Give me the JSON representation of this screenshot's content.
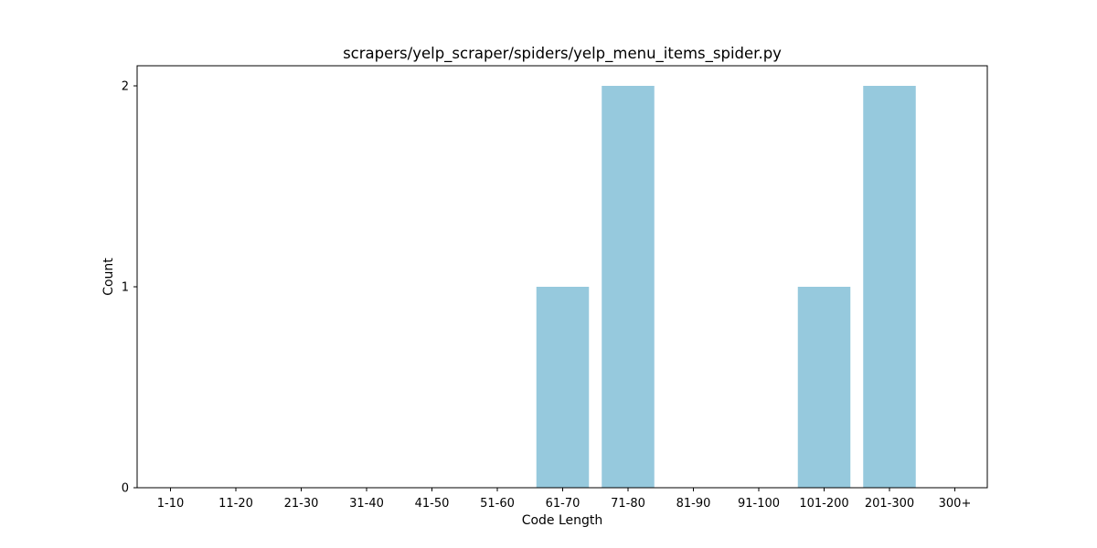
{
  "chart_data": {
    "type": "bar",
    "title": "scrapers/yelp_scraper/spiders/yelp_menu_items_spider.py",
    "xlabel": "Code Length",
    "ylabel": "Count",
    "categories": [
      "1-10",
      "11-20",
      "21-30",
      "31-40",
      "41-50",
      "51-60",
      "61-70",
      "71-80",
      "81-90",
      "91-100",
      "101-200",
      "201-300",
      "300+"
    ],
    "values": [
      0,
      0,
      0,
      0,
      0,
      0,
      1,
      2,
      0,
      0,
      1,
      2,
      0
    ],
    "ylim": [
      0,
      2.1
    ],
    "yticks": [
      "0",
      "1",
      "2"
    ],
    "grid": false,
    "legend": "none",
    "colors": {
      "bar": "#96c9dd",
      "axis": "#000000",
      "background": "#ffffff"
    }
  }
}
